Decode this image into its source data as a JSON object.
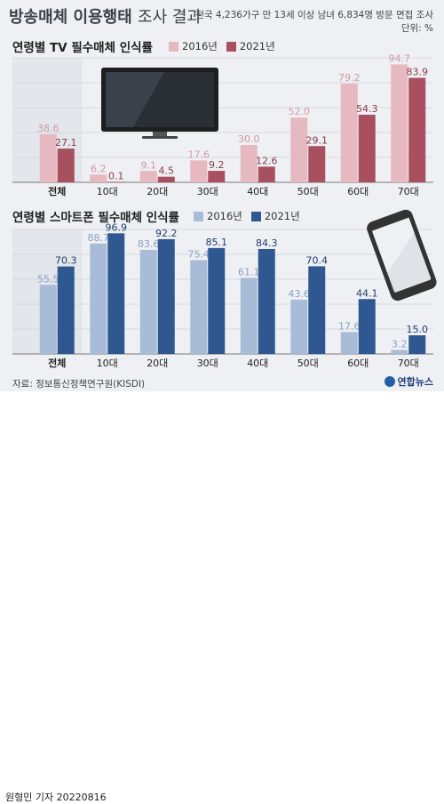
{
  "title_bold": "방송매체 이용행태",
  "title_light": "조사 결과",
  "subtitle": "전국 4,236가구 만 13세 이상 남녀 6,834명 방문 면접 조사",
  "unit": "단위: %",
  "source": "자료: 정보통신정책연구원(KISDI)",
  "logo": "연합뉴스",
  "credit": "원형민 기자  20220816",
  "colors": {
    "tv_2016": "#e6b8c0",
    "tv_2021": "#a8505f",
    "phone_2016": "#a9bcd7",
    "phone_2021": "#2f5890",
    "background": "#eef0f3"
  },
  "chart_data": [
    {
      "type": "bar",
      "title": "연령별 TV 필수매체 인식률",
      "categories": [
        "전체",
        "10대",
        "20대",
        "30대",
        "40대",
        "50대",
        "60대",
        "70대"
      ],
      "series": [
        {
          "name": "2016년",
          "values": [
            38.6,
            6.2,
            9.1,
            17.6,
            30.0,
            52.0,
            79.2,
            94.7
          ],
          "labels": [
            "38.6",
            "6.2",
            "9.1",
            "17.6",
            "30.0",
            "52.0",
            "79.2",
            "94.7"
          ]
        },
        {
          "name": "2021년",
          "values": [
            27.1,
            0.1,
            4.5,
            9.2,
            12.6,
            29.1,
            54.3,
            83.9
          ],
          "labels": [
            "27.1",
            "0.1",
            "4.5",
            "9.2",
            "12.6",
            "29.1",
            "54.3",
            "83.9"
          ]
        }
      ],
      "ylim": [
        0,
        100
      ],
      "grid": true,
      "legend": "top"
    },
    {
      "type": "bar",
      "title": "연령별 스마트폰 필수매체 인식률",
      "categories": [
        "전체",
        "10대",
        "20대",
        "30대",
        "40대",
        "50대",
        "60대",
        "70대"
      ],
      "series": [
        {
          "name": "2016년",
          "values": [
            55.5,
            88.7,
            83.6,
            75.4,
            61.1,
            43.6,
            17.6,
            3.2
          ],
          "labels": [
            "55.5",
            "88.7",
            "83.6",
            "75.4",
            "61.1",
            "43.6",
            "17.6",
            "3.2"
          ]
        },
        {
          "name": "2021년",
          "values": [
            70.3,
            96.9,
            92.2,
            85.1,
            84.3,
            70.4,
            44.1,
            15.0
          ],
          "labels": [
            "70.3",
            "96.9",
            "92.2",
            "85.1",
            "84.3",
            "70.4",
            "44.1",
            "15.0"
          ]
        }
      ],
      "ylim": [
        0,
        100
      ],
      "grid": true,
      "legend": "top"
    }
  ]
}
